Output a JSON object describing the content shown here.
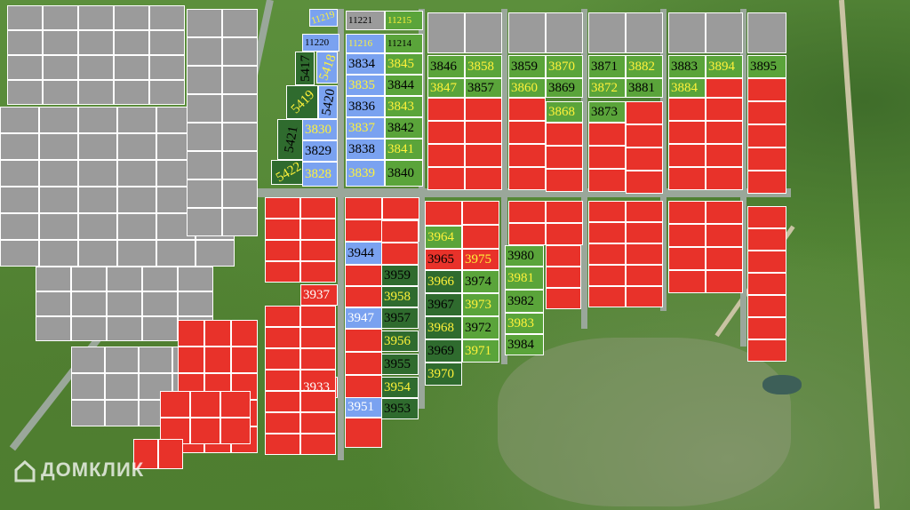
{
  "watermark": {
    "text": "ДОМКЛИК",
    "icon": "house-logo-icon"
  },
  "colors": {
    "sold": "#9b9b9b",
    "unavailable": "#e8322a",
    "available": "#5aa43a",
    "reserved": "#2f6b2e",
    "special": "#7aa2f0"
  },
  "plots": [
    {
      "id": "11219",
      "color": "blue",
      "text_color": "yellow"
    },
    {
      "id": "11220",
      "color": "blue",
      "text_color": "black"
    },
    {
      "id": "11221",
      "color": "gray",
      "text_color": "black"
    },
    {
      "id": "11215",
      "color": "green",
      "text_color": "yellow"
    },
    {
      "id": "11216",
      "color": "blue",
      "text_color": "yellow"
    },
    {
      "id": "11214",
      "color": "green",
      "text_color": "black"
    },
    {
      "id": "5417",
      "color": "dgreen",
      "text_color": "black"
    },
    {
      "id": "5418",
      "color": "blue",
      "text_color": "yellow"
    },
    {
      "id": "5419",
      "color": "dgreen",
      "text_color": "yellow"
    },
    {
      "id": "5420",
      "color": "blue",
      "text_color": "black"
    },
    {
      "id": "5421",
      "color": "dgreen",
      "text_color": "black"
    },
    {
      "id": "5422",
      "color": "dgreen",
      "text_color": "yellow"
    },
    {
      "id": "3834",
      "color": "blue",
      "text_color": "black"
    },
    {
      "id": "3835",
      "color": "blue",
      "text_color": "yellow"
    },
    {
      "id": "3836",
      "color": "blue",
      "text_color": "black"
    },
    {
      "id": "3837",
      "color": "blue",
      "text_color": "yellow"
    },
    {
      "id": "3838",
      "color": "blue",
      "text_color": "black"
    },
    {
      "id": "3839",
      "color": "blue",
      "text_color": "yellow"
    },
    {
      "id": "3830",
      "color": "blue",
      "text_color": "yellow"
    },
    {
      "id": "3829",
      "color": "blue",
      "text_color": "black"
    },
    {
      "id": "3828",
      "color": "blue",
      "text_color": "yellow"
    },
    {
      "id": "3845",
      "color": "green",
      "text_color": "yellow"
    },
    {
      "id": "3844",
      "color": "green",
      "text_color": "black"
    },
    {
      "id": "3843",
      "color": "green",
      "text_color": "yellow"
    },
    {
      "id": "3842",
      "color": "green",
      "text_color": "black"
    },
    {
      "id": "3841",
      "color": "green",
      "text_color": "yellow"
    },
    {
      "id": "3840",
      "color": "green",
      "text_color": "black"
    },
    {
      "id": "3846",
      "color": "green",
      "text_color": "black"
    },
    {
      "id": "3858",
      "color": "green",
      "text_color": "yellow"
    },
    {
      "id": "3847",
      "color": "green",
      "text_color": "yellow"
    },
    {
      "id": "3857",
      "color": "green",
      "text_color": "black"
    },
    {
      "id": "3859",
      "color": "green",
      "text_color": "black"
    },
    {
      "id": "3870",
      "color": "green",
      "text_color": "yellow"
    },
    {
      "id": "3860",
      "color": "green",
      "text_color": "yellow"
    },
    {
      "id": "3869",
      "color": "green",
      "text_color": "black"
    },
    {
      "id": "3868",
      "color": "green",
      "text_color": "yellow"
    },
    {
      "id": "3871",
      "color": "green",
      "text_color": "black"
    },
    {
      "id": "3882",
      "color": "green",
      "text_color": "yellow"
    },
    {
      "id": "3872",
      "color": "green",
      "text_color": "yellow"
    },
    {
      "id": "3881",
      "color": "green",
      "text_color": "black"
    },
    {
      "id": "3873",
      "color": "green",
      "text_color": "black"
    },
    {
      "id": "3883",
      "color": "green",
      "text_color": "black"
    },
    {
      "id": "3894",
      "color": "green",
      "text_color": "yellow"
    },
    {
      "id": "3884",
      "color": "green",
      "text_color": "yellow"
    },
    {
      "id": "3895",
      "color": "green",
      "text_color": "black"
    },
    {
      "id": "3944",
      "color": "blue",
      "text_color": "black"
    },
    {
      "id": "3937",
      "color": "red",
      "text_color": "white"
    },
    {
      "id": "3947",
      "color": "blue",
      "text_color": "white"
    },
    {
      "id": "3933",
      "color": "red",
      "text_color": "white"
    },
    {
      "id": "3951",
      "color": "blue",
      "text_color": "white"
    },
    {
      "id": "3959",
      "color": "dgreen",
      "text_color": "black"
    },
    {
      "id": "3958",
      "color": "dgreen",
      "text_color": "yellow"
    },
    {
      "id": "3957",
      "color": "dgreen",
      "text_color": "black"
    },
    {
      "id": "3956",
      "color": "dgreen",
      "text_color": "yellow"
    },
    {
      "id": "3955",
      "color": "dgreen",
      "text_color": "black"
    },
    {
      "id": "3954",
      "color": "dgreen",
      "text_color": "yellow"
    },
    {
      "id": "3953",
      "color": "dgreen",
      "text_color": "black"
    },
    {
      "id": "3964",
      "color": "green",
      "text_color": "yellow"
    },
    {
      "id": "3965",
      "color": "red",
      "text_color": "black"
    },
    {
      "id": "3975",
      "color": "red",
      "text_color": "yellow"
    },
    {
      "id": "3966",
      "color": "dgreen",
      "text_color": "yellow"
    },
    {
      "id": "3974",
      "color": "green",
      "text_color": "black"
    },
    {
      "id": "3967",
      "color": "dgreen",
      "text_color": "black"
    },
    {
      "id": "3973",
      "color": "green",
      "text_color": "yellow"
    },
    {
      "id": "3968",
      "color": "dgreen",
      "text_color": "yellow"
    },
    {
      "id": "3972",
      "color": "green",
      "text_color": "black"
    },
    {
      "id": "3969",
      "color": "dgreen",
      "text_color": "black"
    },
    {
      "id": "3971",
      "color": "green",
      "text_color": "yellow"
    },
    {
      "id": "3970",
      "color": "dgreen",
      "text_color": "yellow"
    },
    {
      "id": "3980",
      "color": "green",
      "text_color": "black"
    },
    {
      "id": "3981",
      "color": "green",
      "text_color": "yellow"
    },
    {
      "id": "3982",
      "color": "green",
      "text_color": "black"
    },
    {
      "id": "3983",
      "color": "green",
      "text_color": "yellow"
    },
    {
      "id": "3984",
      "color": "green",
      "text_color": "black"
    }
  ]
}
